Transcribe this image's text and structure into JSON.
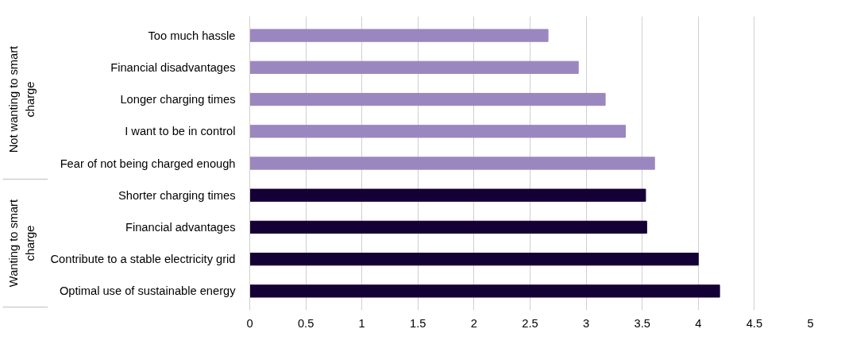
{
  "chart_data": {
    "type": "bar",
    "orientation": "horizontal",
    "categories": [
      "Too much hassle",
      "Financial disadvantages",
      "Longer charging times",
      "I want to be in control",
      "Fear of not being charged enough",
      "Shorter charging times",
      "Financial advantages",
      "Contribute to a stable electricity grid",
      "Optimal use of sustainable energy"
    ],
    "series": [
      {
        "color": "#9b87bf",
        "values": [
          2.66,
          2.93,
          3.17,
          3.35,
          3.61,
          null,
          null,
          null,
          null
        ]
      },
      {
        "color": "#150035",
        "values": [
          null,
          null,
          null,
          null,
          null,
          3.53,
          3.54,
          4.0,
          4.19
        ]
      }
    ],
    "xlim": [
      0,
      5
    ],
    "xticks": [
      0,
      0.5,
      1,
      1.5,
      2,
      2.5,
      3,
      3.5,
      4,
      4.5,
      5
    ],
    "grid": "x",
    "annotations": [
      "Not wanting to smart charge",
      "Wanting to smart charge"
    ]
  }
}
